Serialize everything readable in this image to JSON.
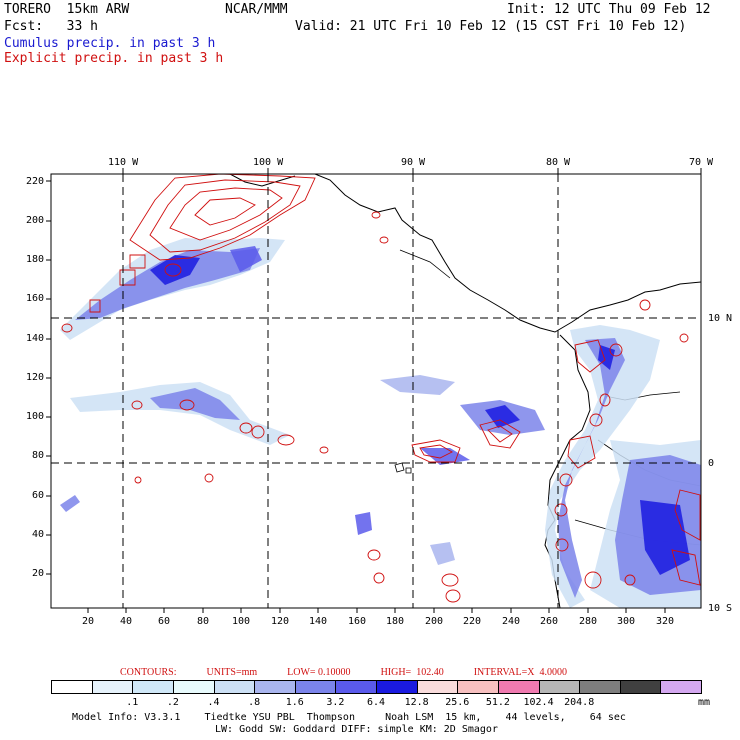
{
  "header": {
    "model": "TORERO  15km ARW",
    "org": "NCAR/MMM",
    "init": "Init: 12 UTC Thu 09 Feb 12",
    "fcst": "Fcst:   33 h",
    "valid": "Valid: 21 UTC Fri 10 Feb 12 (15 CST Fri 10 Feb 12)",
    "line_cumulus": "Cumulus precip. in past 3 h",
    "line_explicit": "Explicit precip. in past 3 h"
  },
  "map": {
    "lon_labels": [
      "110 W",
      "100 W",
      "90 W",
      "80 W",
      "70 W"
    ],
    "lat_labels": [
      "10 N",
      "0",
      "10 S"
    ],
    "y_ticks": [
      "220",
      "200",
      "180",
      "160",
      "140",
      "120",
      "100",
      "80",
      "60",
      "40",
      "20"
    ],
    "x_ticks": [
      "20",
      "40",
      "60",
      "80",
      "100",
      "120",
      "140",
      "160",
      "180",
      "200",
      "220",
      "240",
      "260",
      "280",
      "300",
      "320"
    ]
  },
  "contours": {
    "label": "CONTOURS:",
    "units": "UNITS=mm",
    "low": "LOW= 0.10000",
    "high": "HIGH=  102.40",
    "interval": "INTERVAL=X  4.0000"
  },
  "colorbar": {
    "colors": [
      "#ffffff",
      "#e6f2fb",
      "#d0e8f8",
      "#e8fbfd",
      "#cce0f5",
      "#a9b5ee",
      "#7b84ea",
      "#5a5aeb",
      "#1a1ae0",
      "#f9dcdc",
      "#f7c0c0",
      "#f07ab0",
      "#b6b6b6",
      "#7e7e7e",
      "#404040",
      "#d4a8f0"
    ],
    "labels": [
      ".1",
      ".2",
      ".4",
      ".8",
      "1.6",
      "3.2",
      "6.4",
      "12.8",
      "25.6",
      "51.2",
      "102.4",
      "204.8"
    ],
    "unit": "mm"
  },
  "footer": {
    "line1": "Model Info: V3.3.1    Tiedtke YSU PBL  Thompson     Noah LSM  15 km,    44 levels,    64 sec",
    "line2": "LW: Godd SW: Goddard DIFF: simple KM: 2D Smagor"
  }
}
